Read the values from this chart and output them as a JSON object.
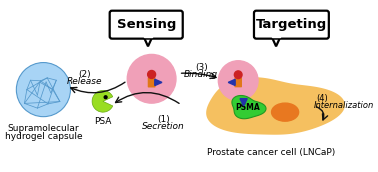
{
  "bg_color": "#ffffff",
  "title_sensing": "Sensing",
  "title_targeting": "Targeting",
  "label1_num": "(1)",
  "label1_txt": "Secretion",
  "label2_num": "(2)",
  "label2_txt": "Release",
  "label3_num": "(3)",
  "label3_txt": "Binding",
  "label4_num": "(4)",
  "label4_txt": "Internalization",
  "psa_label": "PSA",
  "psma_label": "PSMA",
  "bottom_label1a": "Supramolecular",
  "bottom_label1b": "hydrogel capsule",
  "bottom_label2": "Prostate cancer cell (LNCaP)",
  "hydrogel_color": "#a8d4f5",
  "hydrogel_edge": "#5599cc",
  "psa_color1": "#99dd22",
  "psa_color2": "#66aa11",
  "cell_color": "#f5c060",
  "cell_nucleus_color": "#e87820",
  "psma_color": "#33cc33",
  "psma_edge": "#229922",
  "pink_color": "#f0a0b8",
  "red_dot_color": "#cc2222",
  "orange_rect_color": "#e07818",
  "blue_tri_color": "#2233aa",
  "arrow_color": "#111111",
  "box_edge": "#000000",
  "box_face": "#ffffff",
  "figsize": [
    3.78,
    1.72
  ],
  "dpi": 100
}
